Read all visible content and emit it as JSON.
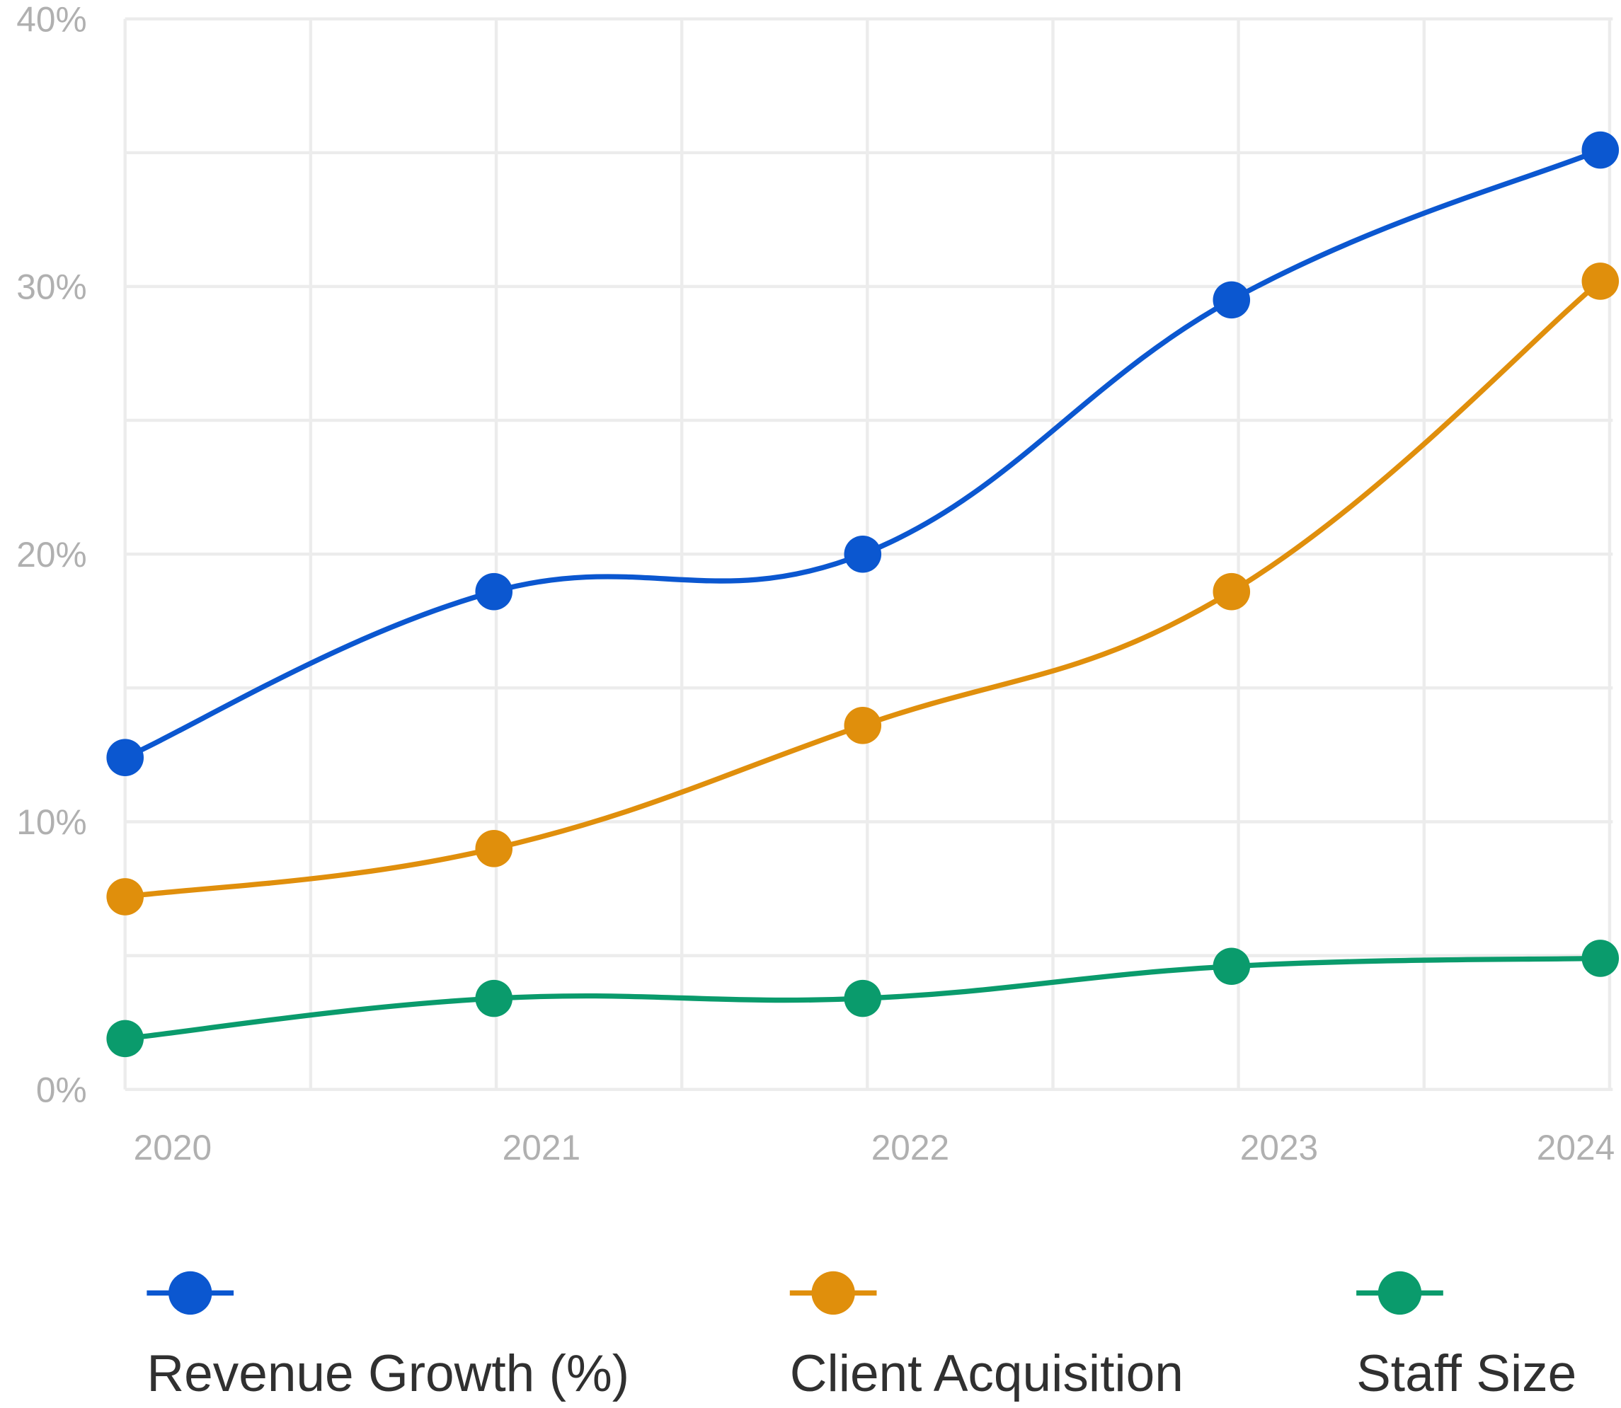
{
  "chart_data": {
    "type": "line",
    "title": "",
    "xlabel": "",
    "ylabel": "",
    "x": [
      "2020",
      "2021",
      "2022",
      "2023",
      "2024"
    ],
    "ylim": [
      0,
      40
    ],
    "yticks": [
      "0%",
      "10%",
      "20%",
      "30%",
      "40%"
    ],
    "grid": true,
    "legend_position": "bottom",
    "series": [
      {
        "name": "Revenue Growth (%)",
        "color": "#0b57d0",
        "values": [
          12.4,
          18.6,
          20.0,
          29.5,
          35.1
        ]
      },
      {
        "name": "Client Acquisition",
        "color": "#e08f0c",
        "values": [
          7.2,
          9.0,
          13.6,
          18.6,
          30.2
        ]
      },
      {
        "name": "Staff Size",
        "color": "#0a9b6c",
        "values": [
          1.9,
          3.4,
          3.4,
          4.6,
          4.9
        ]
      }
    ]
  }
}
